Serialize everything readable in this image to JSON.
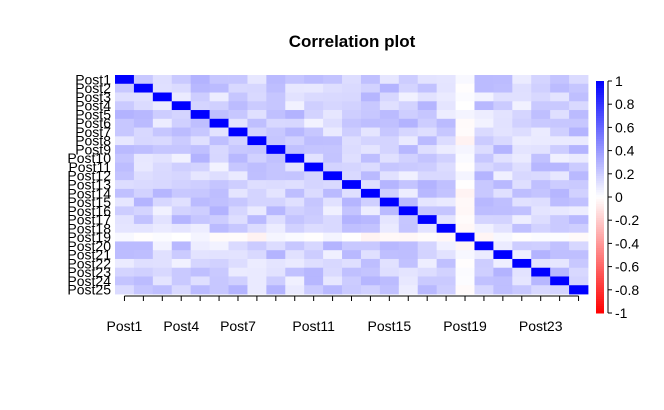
{
  "chart_data": {
    "type": "heatmap",
    "title": "Correlation plot",
    "row_labels": [
      "Post1",
      "Post2",
      "Post3",
      "Post4",
      "Post5",
      "Post6",
      "Post7",
      "Post8",
      "Post9",
      "Post10",
      "Post11",
      "Post12",
      "Post13",
      "Post14",
      "Post15",
      "Post16",
      "Post17",
      "Post18",
      "Post19",
      "Post20",
      "Post21",
      "Post22",
      "Post23",
      "Post24",
      "Post25"
    ],
    "x_tick_labels": [
      {
        "label": "Post1",
        "index": 1
      },
      {
        "label": "Post4",
        "index": 4
      },
      {
        "label": "Post7",
        "index": 7
      },
      {
        "label": "Post11",
        "index": 11
      },
      {
        "label": "Post15",
        "index": 15
      },
      {
        "label": "Post19",
        "index": 19
      },
      {
        "label": "Post23",
        "index": 23
      }
    ],
    "legend_ticks": [
      1,
      0.8,
      0.6,
      0.4,
      0.2,
      0,
      -0.2,
      -0.4,
      -0.6,
      -0.8,
      -1
    ],
    "value_range": [
      -1,
      1
    ],
    "legend_position": "right",
    "color_low": "#ff0000",
    "color_mid": "#ffffff",
    "color_high": "#0000ff",
    "off_diagonal": {
      "typical_range": [
        0.05,
        0.3
      ],
      "post19_range": [
        -0.05,
        0.05
      ],
      "post19_index": 19
    }
  }
}
